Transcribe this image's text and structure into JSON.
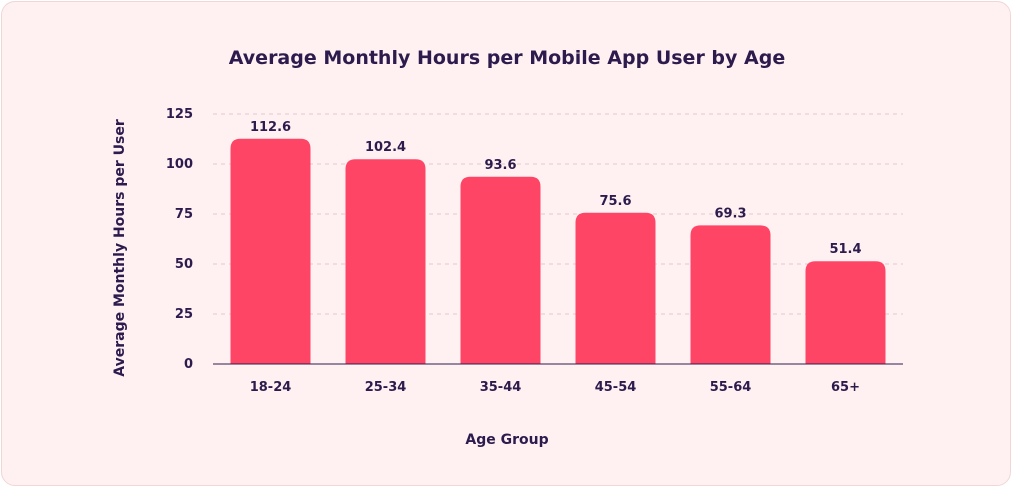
{
  "chart_data": {
    "type": "bar",
    "title": "Average Monthly Hours per Mobile App User by Age",
    "xlabel": "Age Group",
    "ylabel": "Average Monthly Hours per User",
    "categories": [
      "18-24",
      "25-34",
      "35-44",
      "45-54",
      "55-64",
      "65+"
    ],
    "values": [
      112.6,
      102.4,
      93.6,
      75.6,
      69.3,
      51.4
    ],
    "value_labels": [
      "112.6",
      "102.4",
      "93.6",
      "75.6",
      "69.3",
      "51.4"
    ],
    "ylim": [
      0,
      125
    ],
    "yticks": [
      0,
      25,
      50,
      75,
      100,
      125
    ],
    "ytick_labels": [
      "0",
      "25",
      "50",
      "75",
      "100",
      "125"
    ],
    "grid": true,
    "bar_color": "#ff4566",
    "grid_color": "#e3c8cb",
    "text_color": "#2d1b4e"
  }
}
